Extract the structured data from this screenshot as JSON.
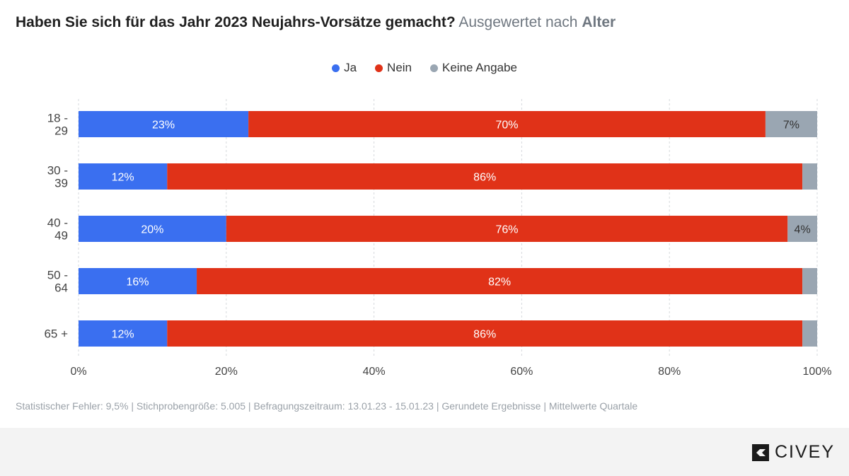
{
  "title": {
    "main": "Haben Sie sich für das Jahr 2023 Neujahrs-Vorsätze gemacht?",
    "sub_prefix": "Ausgewertet nach",
    "sub_bold": "Alter"
  },
  "colors": {
    "ja": "#3a6ff0",
    "nein": "#e03218",
    "keine": "#9aa6b2"
  },
  "chart_data": {
    "type": "bar",
    "orientation": "horizontal",
    "stacked": true,
    "categories": [
      [
        "18 -",
        "29"
      ],
      [
        "30 -",
        "39"
      ],
      [
        "40 -",
        "49"
      ],
      [
        "50 -",
        "64"
      ],
      [
        "65 +"
      ]
    ],
    "series": [
      {
        "name": "Ja",
        "values": [
          23,
          12,
          20,
          16,
          12
        ],
        "labels": [
          "23%",
          "12%",
          "20%",
          "16%",
          "12%"
        ]
      },
      {
        "name": "Nein",
        "values": [
          70,
          86,
          76,
          82,
          86
        ],
        "labels": [
          "70%",
          "86%",
          "76%",
          "82%",
          "86%"
        ]
      },
      {
        "name": "Keine Angabe",
        "values": [
          7,
          2,
          4,
          2,
          2
        ],
        "labels": [
          "7%",
          "",
          "4%",
          "",
          ""
        ]
      }
    ],
    "xlim": [
      0,
      100
    ],
    "xticks": [
      "0%",
      "20%",
      "40%",
      "60%",
      "80%",
      "100%"
    ],
    "grid": true,
    "legend": "top-center"
  },
  "footnote": "Statistischer Fehler: 9,5% | Stichprobengröße: 5.005 | Befragungszeitraum: 13.01.23 - 15.01.23 | Gerundete Ergebnisse | Mittelwerte Quartale",
  "brand": {
    "name": "CIVEY"
  }
}
